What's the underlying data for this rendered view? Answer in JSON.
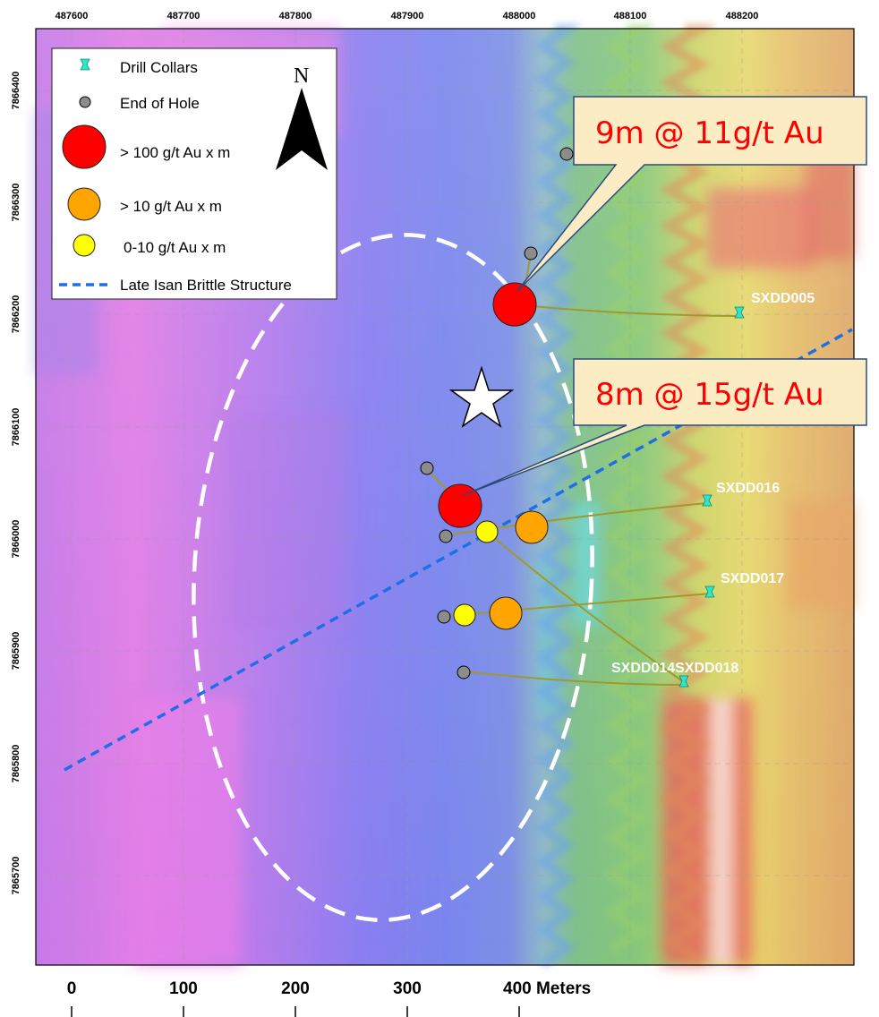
{
  "map": {
    "x_axis_labels": [
      "487600",
      "487700",
      "487800",
      "487900",
      "488000",
      "488100",
      "488200"
    ],
    "y_axis_labels": [
      "7866400",
      "7866300",
      "7866200",
      "7866100",
      "7866000",
      "7865900",
      "7865800",
      "7865700"
    ],
    "scale_bar": [
      "0",
      "100",
      "200",
      "300",
      "400 Meters"
    ]
  },
  "legend": {
    "items": [
      {
        "symbol": "drill-collar",
        "label": "Drill Collars",
        "color": "#2ee6c8"
      },
      {
        "symbol": "end-of-hole",
        "label": "End of Hole",
        "color": "#8c8c8c"
      },
      {
        "symbol": "grade-high",
        "label": "> 100 g/t Au x m",
        "color": "#ff0000"
      },
      {
        "symbol": "grade-mid",
        "label": ">  10 g/t Au x m",
        "color": "#ffa500"
      },
      {
        "symbol": "grade-low",
        "label": "0-10 g/t Au x m",
        "color": "#ffff00"
      },
      {
        "symbol": "structure-line",
        "label": "Late Isan Brittle Structure",
        "color": "#1e6ee6"
      }
    ],
    "north": "N"
  },
  "callouts": [
    {
      "text": "9m @ 11g/t Au"
    },
    {
      "text": "8m @ 15g/t Au"
    }
  ],
  "drill_holes": [
    {
      "id": "SXDD005",
      "label": "SXDD005"
    },
    {
      "id": "SXDD016",
      "label": "SXDD016"
    },
    {
      "id": "SXDD017",
      "label": "SXDD017"
    },
    {
      "id": "SXDD014-018",
      "label": "SXDD014SXDD018"
    }
  ]
}
